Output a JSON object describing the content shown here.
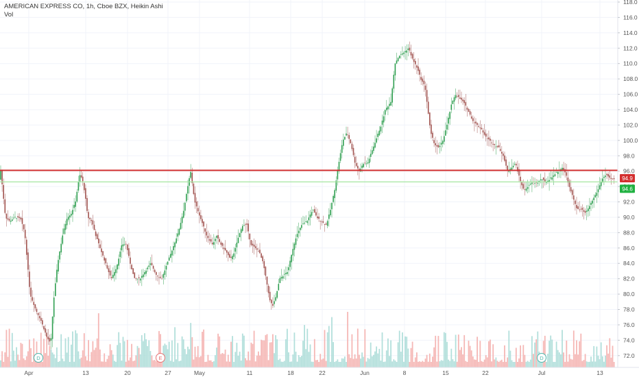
{
  "header": {
    "title": "AMERICAN EXPRESS CO, 1h, Cboe BZX, Heikin Ashi",
    "volume_label": "Vol"
  },
  "colors": {
    "up": "#26a69a",
    "candle_up": "#2e9e4f",
    "candle_down": "#a0524e",
    "vol_up": "#b2dfdb",
    "vol_down": "#f5b7b5",
    "resistance": "#d32f2f",
    "support": "#a5e6a0",
    "axis_text": "#555555",
    "grid": "#f0f3fa"
  },
  "chart_data": {
    "type": "candlestick",
    "title": "AMERICAN EXPRESS CO, 1h, Cboe BZX, Heikin Ashi",
    "y_axis": {
      "ylim": [
        71.0,
        118.0
      ],
      "ticks": [
        "118.0",
        "116.0",
        "114.0",
        "112.0",
        "110.0",
        "108.0",
        "106.0",
        "104.0",
        "102.0",
        "100.0",
        "98.0",
        "96.0",
        "94.0",
        "92.0",
        "90.0",
        "88.0",
        "86.0",
        "84.0",
        "82.0",
        "80.0",
        "78.0",
        "76.0",
        "74.0",
        "72.0"
      ],
      "price_labels": [
        {
          "text": "94.9",
          "kind": "last-close"
        },
        {
          "text": "94.6",
          "kind": "support-level"
        }
      ]
    },
    "x_axis": {
      "ticks": [
        "Apr",
        "13",
        "20",
        "27",
        "May",
        "11",
        "18",
        "22",
        "Jun",
        "8",
        "15",
        "22",
        "Jul",
        "13"
      ]
    },
    "horizontal_lines": [
      {
        "price": 96.1,
        "style": "resistance"
      },
      {
        "price": 94.6,
        "style": "support"
      }
    ],
    "events": [
      {
        "label": "D",
        "kind": "dividend",
        "near": "Apr"
      },
      {
        "label": "E",
        "kind": "earnings",
        "near": "27"
      },
      {
        "label": "D",
        "kind": "dividend",
        "near": "Jul"
      }
    ],
    "price_path": [
      [
        0,
        97.0
      ],
      [
        4,
        93.5
      ],
      [
        8,
        90.0
      ],
      [
        14,
        89.5
      ],
      [
        22,
        90.0
      ],
      [
        30,
        89.8
      ],
      [
        36,
        88.0
      ],
      [
        40,
        84.0
      ],
      [
        44,
        80.0
      ],
      [
        52,
        78.0
      ],
      [
        60,
        76.5
      ],
      [
        68,
        74.5
      ],
      [
        74,
        73.5
      ],
      [
        78,
        79.0
      ],
      [
        84,
        84.0
      ],
      [
        92,
        88.0
      ],
      [
        98,
        90.0
      ],
      [
        104,
        90.5
      ],
      [
        110,
        92.0
      ],
      [
        116,
        95.5
      ],
      [
        120,
        95.0
      ],
      [
        124,
        93.0
      ],
      [
        128,
        90.0
      ],
      [
        134,
        89.5
      ],
      [
        140,
        87.5
      ],
      [
        146,
        86.0
      ],
      [
        154,
        84.0
      ],
      [
        162,
        82.0
      ],
      [
        170,
        83.5
      ],
      [
        178,
        86.5
      ],
      [
        184,
        86.5
      ],
      [
        190,
        84.0
      ],
      [
        196,
        82.0
      ],
      [
        204,
        82.0
      ],
      [
        212,
        83.0
      ],
      [
        220,
        84.0
      ],
      [
        228,
        82.5
      ],
      [
        236,
        82.0
      ],
      [
        244,
        84.0
      ],
      [
        252,
        86.0
      ],
      [
        260,
        88.0
      ],
      [
        268,
        91.0
      ],
      [
        274,
        94.0
      ],
      [
        278,
        96.0
      ],
      [
        284,
        92.0
      ],
      [
        290,
        90.5
      ],
      [
        296,
        89.0
      ],
      [
        302,
        87.5
      ],
      [
        310,
        86.5
      ],
      [
        316,
        87.5
      ],
      [
        322,
        86.5
      ],
      [
        330,
        85.5
      ],
      [
        336,
        84.5
      ],
      [
        342,
        85.5
      ],
      [
        348,
        87.5
      ],
      [
        354,
        89.0
      ],
      [
        360,
        89.0
      ],
      [
        366,
        86.5
      ],
      [
        372,
        86.0
      ],
      [
        378,
        85.5
      ],
      [
        384,
        84.0
      ],
      [
        390,
        81.0
      ],
      [
        394,
        79.0
      ],
      [
        398,
        78.5
      ],
      [
        402,
        79.5
      ],
      [
        408,
        82.0
      ],
      [
        414,
        82.5
      ],
      [
        420,
        83.0
      ],
      [
        426,
        85.5
      ],
      [
        432,
        87.5
      ],
      [
        440,
        89.0
      ],
      [
        448,
        89.5
      ],
      [
        456,
        91.0
      ],
      [
        462,
        90.0
      ],
      [
        468,
        89.5
      ],
      [
        476,
        89.0
      ],
      [
        482,
        91.0
      ],
      [
        488,
        93.5
      ],
      [
        494,
        97.0
      ],
      [
        500,
        100.0
      ],
      [
        506,
        101.0
      ],
      [
        512,
        99.5
      ],
      [
        518,
        97.0
      ],
      [
        524,
        96.0
      ],
      [
        530,
        97.0
      ],
      [
        536,
        97.0
      ],
      [
        542,
        98.5
      ],
      [
        548,
        100.0
      ],
      [
        556,
        102.0
      ],
      [
        562,
        104.0
      ],
      [
        570,
        105.0
      ],
      [
        576,
        110.0
      ],
      [
        582,
        111.0
      ],
      [
        590,
        111.5
      ],
      [
        596,
        112.0
      ],
      [
        602,
        110.5
      ],
      [
        608,
        109.5
      ],
      [
        614,
        108.0
      ],
      [
        620,
        107.0
      ],
      [
        624,
        104.0
      ],
      [
        628,
        101.0
      ],
      [
        634,
        99.5
      ],
      [
        640,
        99.0
      ],
      [
        646,
        100.0
      ],
      [
        652,
        102.0
      ],
      [
        658,
        104.5
      ],
      [
        664,
        106.0
      ],
      [
        670,
        105.5
      ],
      [
        676,
        105.0
      ],
      [
        682,
        104.0
      ],
      [
        690,
        102.5
      ],
      [
        696,
        102.0
      ],
      [
        702,
        101.5
      ],
      [
        708,
        100.5
      ],
      [
        714,
        100.0
      ],
      [
        720,
        99.5
      ],
      [
        728,
        99.0
      ],
      [
        734,
        98.0
      ],
      [
        740,
        96.0
      ],
      [
        746,
        96.5
      ],
      [
        752,
        97.0
      ],
      [
        758,
        95.0
      ],
      [
        764,
        93.5
      ],
      [
        770,
        94.0
      ],
      [
        776,
        94.5
      ],
      [
        784,
        94.5
      ],
      [
        790,
        95.0
      ],
      [
        796,
        94.5
      ],
      [
        802,
        95.0
      ],
      [
        808,
        95.5
      ],
      [
        814,
        96.0
      ],
      [
        820,
        96.5
      ],
      [
        826,
        95.5
      ],
      [
        830,
        94.0
      ],
      [
        836,
        92.5
      ],
      [
        842,
        91.0
      ],
      [
        848,
        91.0
      ],
      [
        854,
        90.5
      ],
      [
        860,
        91.5
      ],
      [
        866,
        92.5
      ],
      [
        872,
        93.5
      ],
      [
        878,
        95.0
      ],
      [
        884,
        95.5
      ],
      [
        890,
        95.0
      ],
      [
        896,
        94.9
      ]
    ]
  }
}
